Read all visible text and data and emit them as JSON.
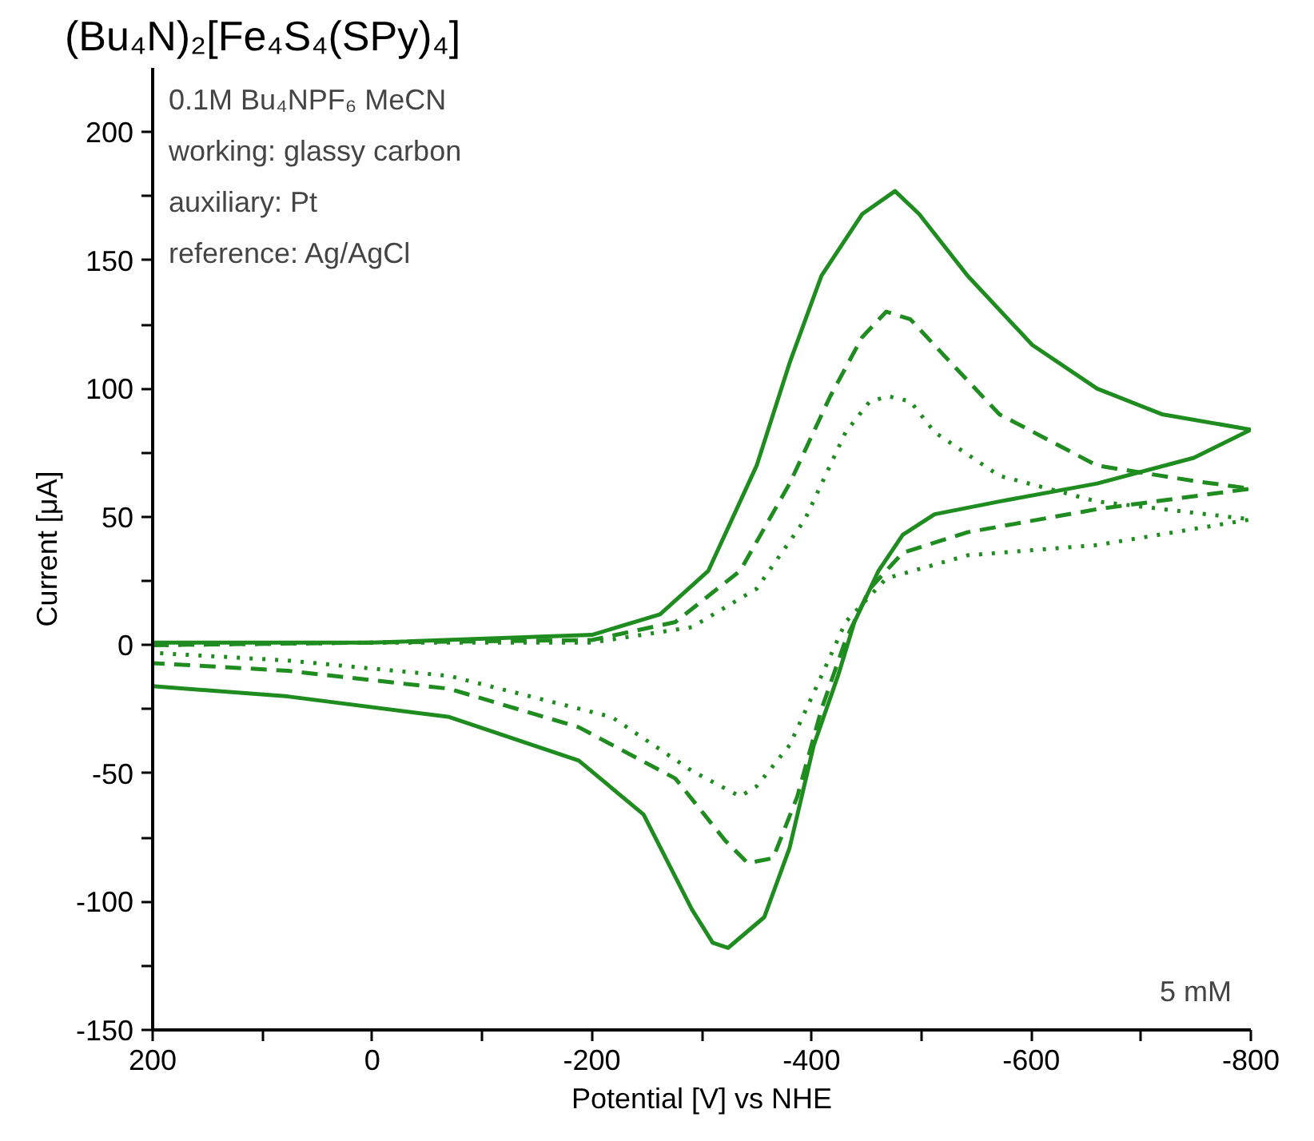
{
  "chart_data": {
    "type": "line",
    "title": "(Bu₄N)₂[Fe₄S₄(SPy)₄]",
    "xlabel": "Potential [V] vs NHE",
    "ylabel": "Current [μA]",
    "annotations": [
      "0.1M Bu₄NPF₆ MeCN",
      "working: glassy carbon",
      "auxiliary: Pt",
      "reference: Ag/AgCl",
      "5 mM"
    ],
    "xlim": [
      200,
      -800
    ],
    "ylim": [
      -150,
      225
    ],
    "xticks": [
      200,
      {
        "value": 100,
        "label": null
      },
      0,
      {
        "value": -100,
        "label": null
      },
      -200,
      {
        "value": -300,
        "label": null
      },
      -400,
      {
        "value": -500,
        "label": null
      },
      -600,
      {
        "value": -700,
        "label": null
      },
      -800
    ],
    "yticks": [
      -150,
      {
        "value": -125,
        "label": null
      },
      -100,
      {
        "value": -75,
        "label": null
      },
      -50,
      {
        "value": -25,
        "label": null
      },
      0,
      {
        "value": 25,
        "label": null
      },
      50,
      {
        "value": 75,
        "label": null
      },
      100,
      {
        "value": 125,
        "label": null
      },
      150,
      {
        "value": 175,
        "label": null
      },
      200
    ],
    "grid": false,
    "marker": "none",
    "series": [
      {
        "color": "#1e8c1e",
        "line_style": "solid",
        "x": [
          200,
          0,
          -200,
          -262,
          -306,
          -350,
          -380,
          -409,
          -446,
          -476,
          -498,
          -542,
          -601,
          -660,
          -719,
          -800,
          -748,
          -660,
          -571,
          -512,
          -483,
          -461,
          -439,
          -424,
          -402,
          -380,
          -357,
          -324,
          -310,
          -291,
          -247,
          -188,
          -70,
          77,
          200
        ],
        "values": [
          1,
          1,
          4,
          12,
          29,
          70,
          110,
          144,
          168,
          177,
          168,
          144,
          117,
          100,
          90,
          84,
          73,
          63,
          56,
          51,
          43,
          29,
          9,
          -12,
          -39,
          -79,
          -106,
          -118,
          -116,
          -103,
          -66,
          -45,
          -28,
          -20,
          -16
        ]
      },
      {
        "color": "#1e8c1e",
        "line_style": "dashed",
        "x": [
          200,
          0,
          -200,
          -276,
          -335,
          -380,
          -417,
          -446,
          -468,
          -490,
          -527,
          -571,
          -660,
          -748,
          -800,
          -660,
          -542,
          -483,
          -453,
          -431,
          -409,
          -387,
          -365,
          -342,
          -321,
          -276,
          -188,
          -70,
          77,
          200
        ],
        "values": [
          0,
          1,
          2,
          9,
          29,
          63,
          97,
          120,
          130,
          127,
          110,
          90,
          70,
          64,
          61,
          53,
          44,
          36,
          22,
          2,
          -25,
          -59,
          -83,
          -85,
          -76,
          -52,
          -32,
          -17,
          -10,
          -7
        ]
      },
      {
        "color": "#1e8c1e",
        "line_style": "dotted",
        "x": [
          200,
          0,
          -200,
          -291,
          -350,
          -394,
          -431,
          -453,
          -470,
          -490,
          -512,
          -571,
          -660,
          -800,
          -660,
          -542,
          -468,
          -431,
          -409,
          -380,
          -350,
          -335,
          -291,
          -218,
          -70,
          77,
          200
        ],
        "values": [
          0,
          1,
          1,
          7,
          22,
          49,
          83,
          95,
          97,
          95,
          83,
          66,
          56,
          49,
          39,
          35,
          26,
          9,
          -12,
          -39,
          -55,
          -59,
          -49,
          -28,
          -12,
          -6,
          -3
        ]
      }
    ]
  }
}
